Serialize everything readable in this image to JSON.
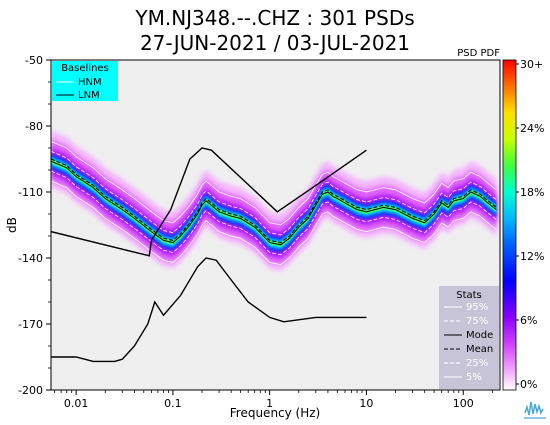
{
  "header": {
    "title_line1": "YM.NJ348.--.CHZ : 301 PSDs",
    "title_line2": "27-JUN-2021 / 03-JUL-2021"
  },
  "chart_data": {
    "type": "heatmap",
    "title": "YM.NJ348.--.CHZ : 301 PSDs",
    "subtitle": "27-JUN-2021 / 03-JUL-2021",
    "xlabel": "Frequency (Hz)",
    "ylabel": "dB",
    "xscale": "log",
    "xlim": [
      0.0055,
      240
    ],
    "ylim": [
      -200,
      -50
    ],
    "xticks": [
      {
        "value": 0.01,
        "label": "0.01"
      },
      {
        "value": 0.1,
        "label": "0.1"
      },
      {
        "value": 1,
        "label": "1"
      },
      {
        "value": 10,
        "label": "10"
      },
      {
        "value": 100,
        "label": "100"
      }
    ],
    "yticks": [
      {
        "value": -50,
        "label": "-50"
      },
      {
        "value": -80,
        "label": "-80"
      },
      {
        "value": -110,
        "label": "-110"
      },
      {
        "value": -140,
        "label": "-140"
      },
      {
        "value": -170,
        "label": "-170"
      },
      {
        "value": -200,
        "label": "-200"
      }
    ],
    "colorbar": {
      "title": "PSD PDF",
      "ticks": [
        "30+",
        "24%",
        "18%",
        "12%",
        "6%",
        "0%"
      ]
    },
    "baselines_legend": {
      "title": "Baselines",
      "entries": [
        "HNM",
        "LNM"
      ],
      "background": "#00ffff"
    },
    "stats_legend": {
      "title": "Stats",
      "entries": [
        "95%",
        "75%",
        "Mode",
        "Mean",
        "25%",
        "5%"
      ],
      "background": "#c8c4d8"
    },
    "series": [
      {
        "name": "HNM",
        "x": [
          0.0055,
          0.03,
          0.057,
          0.06,
          0.095,
          0.15,
          0.2,
          0.25,
          1.2,
          3,
          10
        ],
        "y": [
          -128,
          -136,
          -139,
          -132,
          -118,
          -95,
          -90,
          -91,
          -119,
          -107,
          -91
        ]
      },
      {
        "name": "LNM",
        "x": [
          0.0055,
          0.01,
          0.015,
          0.025,
          0.03,
          0.04,
          0.055,
          0.065,
          0.08,
          0.12,
          0.18,
          0.22,
          0.28,
          0.4,
          0.6,
          1.0,
          1.4,
          3,
          10
        ],
        "y": [
          -185,
          -185,
          -187,
          -187,
          -186,
          -180,
          -170,
          -160,
          -166,
          -157,
          -144,
          -140,
          -141,
          -150,
          -160,
          -167,
          -169,
          -167,
          -167
        ]
      },
      {
        "name": "Mode",
        "x": [
          0.0055,
          0.008,
          0.01,
          0.015,
          0.02,
          0.03,
          0.04,
          0.06,
          0.08,
          0.1,
          0.12,
          0.15,
          0.18,
          0.2,
          0.22,
          0.25,
          0.3,
          0.4,
          0.5,
          0.7,
          1.0,
          1.3,
          1.6,
          2.0,
          2.5,
          3.0,
          3.5,
          4.0,
          4.5,
          5,
          6,
          8,
          10,
          15,
          20,
          30,
          40,
          50,
          60,
          70,
          80,
          100,
          120,
          150,
          180,
          220
        ],
        "y": [
          -96,
          -99,
          -103,
          -108,
          -113,
          -118,
          -122,
          -128,
          -132,
          -133,
          -130,
          -125,
          -120,
          -116,
          -114,
          -116,
          -119,
          -121,
          -122,
          -126,
          -133,
          -134,
          -131,
          -126,
          -122,
          -116,
          -111,
          -110,
          -112,
          -113,
          -115,
          -118,
          -119,
          -117,
          -118,
          -122,
          -124,
          -120,
          -115,
          -117,
          -114,
          -113,
          -110,
          -112,
          -115,
          -118
        ]
      }
    ]
  }
}
